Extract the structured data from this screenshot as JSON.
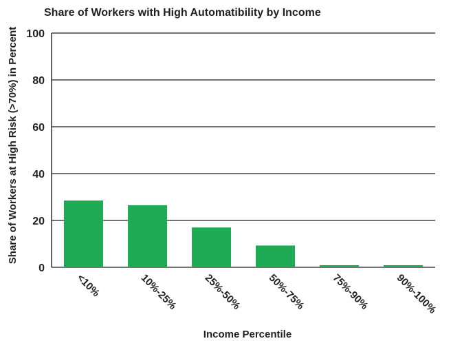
{
  "chart_data": {
    "type": "bar",
    "title": "Share of Workers with High Automatibility by Income",
    "xlabel": "Income Percentile",
    "ylabel": "Share of Workers at High Risk (>70%) in Percent",
    "categories": [
      "<10%",
      "10%-25%",
      "25%-50%",
      "50%-75%",
      "75%-90%",
      "90%-100%"
    ],
    "values": [
      28.5,
      26.5,
      17,
      9.3,
      0.9,
      0.9
    ],
    "ylim": [
      0,
      100
    ],
    "yticks": [
      0,
      20,
      40,
      60,
      80,
      100
    ],
    "grid": true,
    "legend": "none",
    "bar_color": "#1fab56"
  }
}
